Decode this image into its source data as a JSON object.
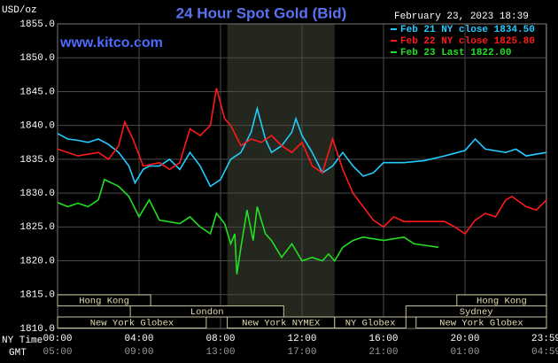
{
  "chart_data": {
    "type": "line",
    "title": "24 Hour Spot Gold (Bid)",
    "timestamp": "February 23, 2023 18:39",
    "watermark": "www.kitco.com",
    "ylabel": "USD/oz",
    "x_axis_names": [
      "NY Time",
      "GMT"
    ],
    "xlim": [
      0,
      24
    ],
    "xticks": [
      {
        "value": 0,
        "label": "00:00"
      },
      {
        "value": 4,
        "label": "04:00"
      },
      {
        "value": 8,
        "label": "08:00"
      },
      {
        "value": 12,
        "label": "12:00"
      },
      {
        "value": 16,
        "label": "16:00"
      },
      {
        "value": 20,
        "label": "20:00"
      },
      {
        "value": 23.98,
        "label": "23:59"
      }
    ],
    "gmt_labels": [
      "05:00",
      "09:00",
      "13:00",
      "17:00",
      "21:00",
      "01:00",
      "04:59"
    ],
    "ylim": [
      1810,
      1855
    ],
    "yticks": [
      {
        "value": 1810,
        "label": "1810.0"
      },
      {
        "value": 1815,
        "label": "1815.0"
      },
      {
        "value": 1820,
        "label": "1820.0"
      },
      {
        "value": 1825,
        "label": "1825.0"
      },
      {
        "value": 1830,
        "label": "1830.0"
      },
      {
        "value": 1835,
        "label": "1835.0"
      },
      {
        "value": 1840,
        "label": "1840.0"
      },
      {
        "value": 1845,
        "label": "1845.0"
      },
      {
        "value": 1850,
        "label": "1850.0"
      },
      {
        "value": 1855,
        "label": "1855.0"
      }
    ],
    "grid": true,
    "shaded_range": [
      8.33,
      13.6
    ],
    "sessions": [
      [
        {
          "name": "Hong Kong",
          "start": 0,
          "end": 4.57
        },
        {
          "name": "Hong Kong",
          "start": 19.6,
          "end": 24
        }
      ],
      [
        {
          "name": "London",
          "start": 3.57,
          "end": 11.1
        },
        {
          "name": "Sydney",
          "start": 17.1,
          "end": 24
        }
      ],
      [
        {
          "name": "New York Globex",
          "start": 0,
          "end": 7.3
        },
        {
          "name": "New York NYMEX",
          "start": 8.33,
          "end": 13.6
        },
        {
          "name": "NY Globex",
          "start": 13.6,
          "end": 17.1
        },
        {
          "name": "New York Globex",
          "start": 17.6,
          "end": 24
        }
      ]
    ],
    "series": [
      {
        "name": "Feb 21 NY close 1834.50",
        "color": "#22ccff",
        "x": [
          0,
          0.5,
          1,
          1.5,
          2,
          2.5,
          3,
          3.5,
          3.8,
          4.2,
          4.5,
          5,
          5.5,
          6,
          6.5,
          7,
          7.5,
          8,
          8.5,
          9,
          9.5,
          9.8,
          10.2,
          10.5,
          11,
          11.5,
          11.7,
          12,
          12.5,
          13,
          13.5,
          14,
          14.5,
          15,
          15.5,
          16,
          17,
          18,
          19,
          20,
          20.5,
          21,
          22,
          22.5,
          23,
          24
        ],
        "values": [
          1838.8,
          1838,
          1837.8,
          1837.5,
          1838,
          1837.2,
          1836,
          1834,
          1831.5,
          1833.5,
          1834,
          1834,
          1835,
          1833.5,
          1836,
          1834,
          1831,
          1832,
          1835,
          1836,
          1839,
          1842.5,
          1838,
          1836,
          1837,
          1839,
          1841,
          1838.5,
          1836,
          1833,
          1834,
          1836,
          1834,
          1832.5,
          1833,
          1834.5,
          1834.5,
          1834.8,
          1835.5,
          1836.3,
          1838,
          1836.5,
          1836,
          1836.5,
          1835.5,
          1836
        ]
      },
      {
        "name": "Feb 22 NY close 1825.80",
        "color": "#ff1a1a",
        "x": [
          0,
          1,
          2,
          2.5,
          3,
          3.3,
          3.7,
          4.2,
          5,
          5.5,
          6,
          6.5,
          7,
          7.5,
          7.8,
          8.2,
          8.5,
          9,
          9.5,
          10,
          10.5,
          11,
          11.5,
          12,
          12.5,
          13,
          13.3,
          13.5,
          14,
          14.5,
          15,
          15.5,
          16,
          16.5,
          17,
          19,
          19.5,
          20,
          20.5,
          21,
          21.5,
          22,
          22.3,
          23,
          23.5,
          24
        ],
        "values": [
          1836.5,
          1835.5,
          1836,
          1835,
          1837,
          1840.5,
          1838,
          1834,
          1834.5,
          1833.5,
          1834.5,
          1839.5,
          1838.5,
          1840,
          1845.5,
          1841,
          1840,
          1837,
          1838,
          1837.5,
          1838.5,
          1837,
          1836,
          1837.5,
          1834,
          1833,
          1836,
          1838,
          1833.5,
          1830,
          1828,
          1826,
          1825,
          1826.5,
          1825.8,
          1825.8,
          1825,
          1824,
          1826,
          1827,
          1826.5,
          1829,
          1829.5,
          1828,
          1827.5,
          1829
        ]
      },
      {
        "name": "Feb 23 Last 1822.00",
        "color": "#22e022",
        "x": [
          0,
          0.5,
          1,
          1.5,
          2,
          2.3,
          3,
          3.5,
          4,
          4.5,
          5,
          6,
          6.5,
          7,
          7.5,
          7.8,
          8.2,
          8.5,
          8.7,
          8.8,
          9,
          9.3,
          9.6,
          9.8,
          10.2,
          10.5,
          11,
          11.5,
          12,
          12.5,
          13,
          13.3,
          13.6,
          14,
          14.5,
          15,
          16,
          17,
          17.5,
          18,
          18.7
        ],
        "values": [
          1828.6,
          1828,
          1828.5,
          1828,
          1829,
          1832,
          1831,
          1829.5,
          1826.5,
          1829,
          1826,
          1825.5,
          1826.5,
          1825,
          1824,
          1827,
          1825.5,
          1822.5,
          1824,
          1818,
          1822,
          1827.5,
          1823,
          1828,
          1824,
          1823,
          1820.5,
          1822.5,
          1820,
          1820.5,
          1820,
          1821,
          1820,
          1822,
          1823,
          1823.5,
          1823,
          1823.5,
          1822.5,
          1822.3,
          1822
        ]
      }
    ]
  }
}
